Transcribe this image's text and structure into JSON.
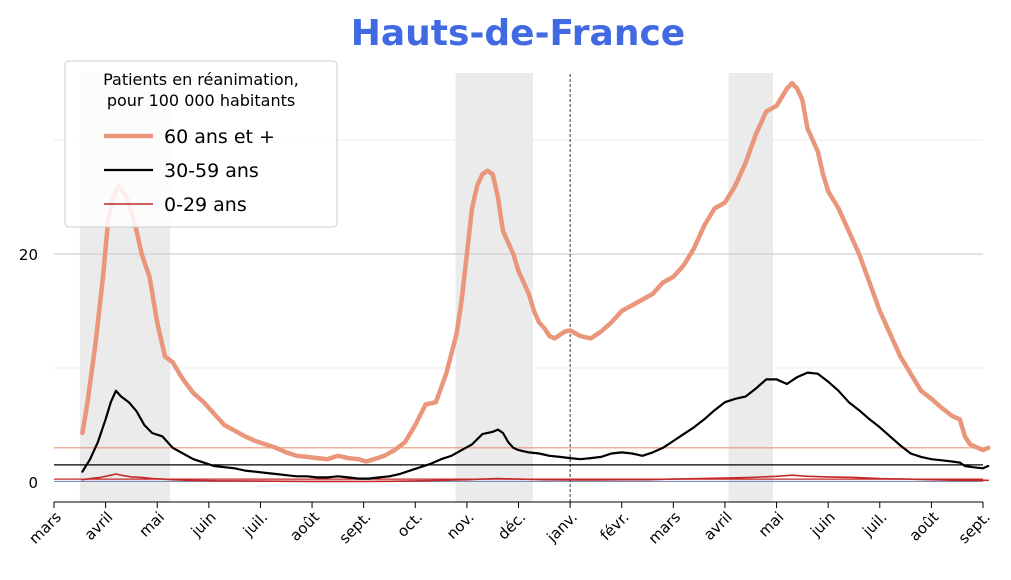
{
  "chart_data": {
    "type": "line",
    "title": "Hauts-de-France",
    "title_color": "#4169E1",
    "xlabel": "",
    "ylabel": "",
    "x_ticks": [
      "mars",
      "avril",
      "mai",
      "juin",
      "juil.",
      "août",
      "sept.",
      "oct.",
      "nov.",
      "déc.",
      "janv.",
      "févr.",
      "mars",
      "avril",
      "mai",
      "juin",
      "juil.",
      "août",
      "sept."
    ],
    "y_ticks": [
      0,
      20
    ],
    "y_range": [
      -1.8,
      36.2
    ],
    "grid": "horizontal",
    "legend": {
      "title": [
        "Patients en réanimation,",
        "pour 100 000 habitants"
      ],
      "placement": "top-left"
    },
    "shaded_periods": [
      {
        "from": 0.5,
        "to": 2.25
      },
      {
        "from": 7.78,
        "to": 9.28
      },
      {
        "from": 13.07,
        "to": 13.93
      }
    ],
    "vline": {
      "x": 10,
      "style": "dashed"
    },
    "series": [
      {
        "name": "60 ans et +",
        "color": "#E9967A",
        "baseline": 3.0,
        "points": [
          [
            0.55,
            4.3
          ],
          [
            0.65,
            7
          ],
          [
            0.8,
            12
          ],
          [
            0.95,
            18
          ],
          [
            1.05,
            23
          ],
          [
            1.15,
            25
          ],
          [
            1.25,
            26
          ],
          [
            1.4,
            25
          ],
          [
            1.55,
            23
          ],
          [
            1.7,
            20
          ],
          [
            1.85,
            18
          ],
          [
            2.0,
            14
          ],
          [
            2.15,
            11
          ],
          [
            2.3,
            10.5
          ],
          [
            2.5,
            9
          ],
          [
            2.7,
            7.8
          ],
          [
            2.9,
            7
          ],
          [
            3.1,
            6
          ],
          [
            3.3,
            5
          ],
          [
            3.5,
            4.5
          ],
          [
            3.7,
            4.0
          ],
          [
            3.9,
            3.6
          ],
          [
            4.1,
            3.3
          ],
          [
            4.3,
            3.0
          ],
          [
            4.5,
            2.6
          ],
          [
            4.7,
            2.3
          ],
          [
            4.9,
            2.2
          ],
          [
            5.1,
            2.1
          ],
          [
            5.3,
            2.0
          ],
          [
            5.5,
            2.3
          ],
          [
            5.7,
            2.1
          ],
          [
            5.9,
            2.0
          ],
          [
            6.05,
            1.8
          ],
          [
            6.2,
            2.0
          ],
          [
            6.4,
            2.3
          ],
          [
            6.6,
            2.8
          ],
          [
            6.8,
            3.5
          ],
          [
            7.0,
            5.0
          ],
          [
            7.2,
            6.8
          ],
          [
            7.4,
            7.0
          ],
          [
            7.6,
            9.5
          ],
          [
            7.8,
            13
          ],
          [
            7.9,
            16
          ],
          [
            8.0,
            20
          ],
          [
            8.1,
            24
          ],
          [
            8.2,
            26
          ],
          [
            8.3,
            27
          ],
          [
            8.4,
            27.3
          ],
          [
            8.5,
            27
          ],
          [
            8.6,
            25
          ],
          [
            8.7,
            22
          ],
          [
            8.8,
            21
          ],
          [
            8.9,
            20
          ],
          [
            9.0,
            18.5
          ],
          [
            9.1,
            17.5
          ],
          [
            9.2,
            16.5
          ],
          [
            9.3,
            15
          ],
          [
            9.4,
            14
          ],
          [
            9.5,
            13.5
          ],
          [
            9.6,
            12.8
          ],
          [
            9.7,
            12.6
          ],
          [
            9.8,
            12.9
          ],
          [
            9.9,
            13.2
          ],
          [
            10.0,
            13.3
          ],
          [
            10.2,
            12.8
          ],
          [
            10.4,
            12.6
          ],
          [
            10.6,
            13.2
          ],
          [
            10.8,
            14.0
          ],
          [
            11.0,
            15.0
          ],
          [
            11.2,
            15.5
          ],
          [
            11.4,
            16.0
          ],
          [
            11.6,
            16.5
          ],
          [
            11.8,
            17.5
          ],
          [
            12.0,
            18.0
          ],
          [
            12.2,
            19.0
          ],
          [
            12.4,
            20.5
          ],
          [
            12.6,
            22.5
          ],
          [
            12.8,
            24.0
          ],
          [
            13.0,
            24.5
          ],
          [
            13.2,
            26.0
          ],
          [
            13.4,
            28.0
          ],
          [
            13.6,
            30.5
          ],
          [
            13.8,
            32.5
          ],
          [
            14.0,
            33.0
          ],
          [
            14.2,
            34.5
          ],
          [
            14.3,
            35.0
          ],
          [
            14.4,
            34.5
          ],
          [
            14.5,
            33.5
          ],
          [
            14.6,
            31
          ],
          [
            14.7,
            30
          ],
          [
            14.8,
            29
          ],
          [
            14.9,
            27
          ],
          [
            15.0,
            25.5
          ],
          [
            15.2,
            24.0
          ],
          [
            15.4,
            22.0
          ],
          [
            15.6,
            20.0
          ],
          [
            15.8,
            17.5
          ],
          [
            16.0,
            15.0
          ],
          [
            16.2,
            13.0
          ],
          [
            16.4,
            11.0
          ],
          [
            16.6,
            9.5
          ],
          [
            16.8,
            8.0
          ],
          [
            17.0,
            7.3
          ],
          [
            17.2,
            6.5
          ],
          [
            17.4,
            5.8
          ],
          [
            17.55,
            5.5
          ],
          [
            17.65,
            4.0
          ],
          [
            17.75,
            3.3
          ],
          [
            17.9,
            3.0
          ],
          [
            18.0,
            2.8
          ],
          [
            18.1,
            3.0
          ]
        ]
      },
      {
        "name": "30-59 ans",
        "color": "#000000",
        "baseline": 1.5,
        "points": [
          [
            0.55,
            0.9
          ],
          [
            0.7,
            2.0
          ],
          [
            0.85,
            3.5
          ],
          [
            1.0,
            5.5
          ],
          [
            1.1,
            7.0
          ],
          [
            1.2,
            8.0
          ],
          [
            1.3,
            7.5
          ],
          [
            1.45,
            7.0
          ],
          [
            1.6,
            6.2
          ],
          [
            1.75,
            5.0
          ],
          [
            1.9,
            4.3
          ],
          [
            2.1,
            4.0
          ],
          [
            2.3,
            3.0
          ],
          [
            2.5,
            2.5
          ],
          [
            2.7,
            2.0
          ],
          [
            2.9,
            1.7
          ],
          [
            3.1,
            1.4
          ],
          [
            3.3,
            1.3
          ],
          [
            3.5,
            1.2
          ],
          [
            3.7,
            1.0
          ],
          [
            3.9,
            0.9
          ],
          [
            4.1,
            0.8
          ],
          [
            4.3,
            0.7
          ],
          [
            4.5,
            0.6
          ],
          [
            4.7,
            0.5
          ],
          [
            4.9,
            0.5
          ],
          [
            5.1,
            0.4
          ],
          [
            5.3,
            0.4
          ],
          [
            5.5,
            0.5
          ],
          [
            5.7,
            0.4
          ],
          [
            5.9,
            0.3
          ],
          [
            6.1,
            0.3
          ],
          [
            6.3,
            0.4
          ],
          [
            6.5,
            0.5
          ],
          [
            6.7,
            0.7
          ],
          [
            6.9,
            1.0
          ],
          [
            7.1,
            1.3
          ],
          [
            7.3,
            1.6
          ],
          [
            7.5,
            2.0
          ],
          [
            7.7,
            2.3
          ],
          [
            7.9,
            2.8
          ],
          [
            8.1,
            3.3
          ],
          [
            8.3,
            4.2
          ],
          [
            8.5,
            4.4
          ],
          [
            8.6,
            4.6
          ],
          [
            8.7,
            4.3
          ],
          [
            8.8,
            3.5
          ],
          [
            8.9,
            3.0
          ],
          [
            9.0,
            2.8
          ],
          [
            9.2,
            2.6
          ],
          [
            9.4,
            2.5
          ],
          [
            9.6,
            2.3
          ],
          [
            9.8,
            2.2
          ],
          [
            10.0,
            2.1
          ],
          [
            10.2,
            2.0
          ],
          [
            10.4,
            2.1
          ],
          [
            10.6,
            2.2
          ],
          [
            10.8,
            2.5
          ],
          [
            11.0,
            2.6
          ],
          [
            11.2,
            2.5
          ],
          [
            11.4,
            2.3
          ],
          [
            11.6,
            2.6
          ],
          [
            11.8,
            3.0
          ],
          [
            12.0,
            3.6
          ],
          [
            12.2,
            4.2
          ],
          [
            12.4,
            4.8
          ],
          [
            12.6,
            5.5
          ],
          [
            12.8,
            6.3
          ],
          [
            13.0,
            7.0
          ],
          [
            13.2,
            7.3
          ],
          [
            13.4,
            7.5
          ],
          [
            13.6,
            8.2
          ],
          [
            13.8,
            9.0
          ],
          [
            14.0,
            9.0
          ],
          [
            14.2,
            8.6
          ],
          [
            14.4,
            9.2
          ],
          [
            14.6,
            9.6
          ],
          [
            14.8,
            9.5
          ],
          [
            15.0,
            8.8
          ],
          [
            15.2,
            8.0
          ],
          [
            15.4,
            7.0
          ],
          [
            15.6,
            6.3
          ],
          [
            15.8,
            5.5
          ],
          [
            16.0,
            4.8
          ],
          [
            16.2,
            4.0
          ],
          [
            16.4,
            3.2
          ],
          [
            16.6,
            2.5
          ],
          [
            16.8,
            2.2
          ],
          [
            17.0,
            2.0
          ],
          [
            17.2,
            1.9
          ],
          [
            17.4,
            1.8
          ],
          [
            17.55,
            1.7
          ],
          [
            17.65,
            1.4
          ],
          [
            17.8,
            1.3
          ],
          [
            18.0,
            1.2
          ],
          [
            18.1,
            1.4
          ]
        ]
      },
      {
        "name": "0-29 ans",
        "color": "#C62828",
        "baseline": 0.25,
        "points": [
          [
            0.55,
            0.2
          ],
          [
            0.7,
            0.3
          ],
          [
            0.9,
            0.4
          ],
          [
            1.0,
            0.5
          ],
          [
            1.1,
            0.6
          ],
          [
            1.2,
            0.7
          ],
          [
            1.3,
            0.6
          ],
          [
            1.5,
            0.45
          ],
          [
            1.7,
            0.4
          ],
          [
            1.9,
            0.3
          ],
          [
            2.1,
            0.25
          ],
          [
            2.3,
            0.2
          ],
          [
            2.6,
            0.15
          ],
          [
            2.9,
            0.12
          ],
          [
            3.2,
            0.1
          ],
          [
            3.5,
            0.1
          ],
          [
            4.0,
            0.08
          ],
          [
            4.5,
            0.06
          ],
          [
            5.0,
            0.05
          ],
          [
            5.5,
            0.05
          ],
          [
            6.0,
            0.04
          ],
          [
            6.5,
            0.06
          ],
          [
            7.0,
            0.1
          ],
          [
            7.5,
            0.15
          ],
          [
            8.0,
            0.2
          ],
          [
            8.3,
            0.25
          ],
          [
            8.6,
            0.3
          ],
          [
            9.0,
            0.25
          ],
          [
            9.5,
            0.2
          ],
          [
            10.0,
            0.18
          ],
          [
            10.5,
            0.18
          ],
          [
            11.0,
            0.2
          ],
          [
            11.5,
            0.2
          ],
          [
            12.0,
            0.25
          ],
          [
            12.5,
            0.3
          ],
          [
            13.0,
            0.35
          ],
          [
            13.5,
            0.4
          ],
          [
            14.0,
            0.5
          ],
          [
            14.3,
            0.6
          ],
          [
            14.6,
            0.5
          ],
          [
            15.0,
            0.45
          ],
          [
            15.5,
            0.4
          ],
          [
            16.0,
            0.3
          ],
          [
            16.5,
            0.25
          ],
          [
            17.0,
            0.2
          ],
          [
            17.5,
            0.15
          ],
          [
            18.0,
            0.15
          ],
          [
            18.1,
            0.15
          ]
        ]
      }
    ],
    "extra_hlines": [
      {
        "y": 0.05,
        "color": "#7B8FBF"
      }
    ]
  }
}
